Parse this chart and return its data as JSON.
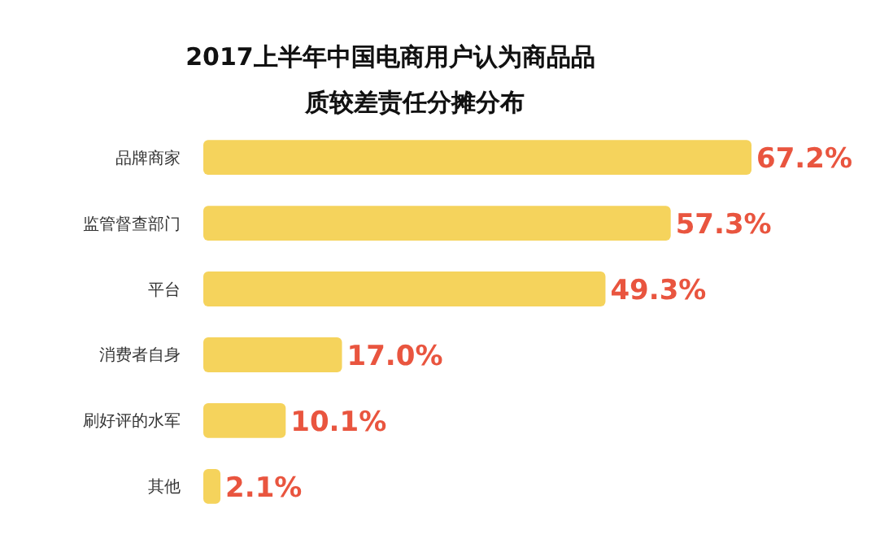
{
  "chart_data": {
    "type": "bar",
    "orientation": "horizontal",
    "title": "2017上半年中国电商用户认为商品品质较差责任分摊分布",
    "categories": [
      "品牌商家",
      "监管督查部门",
      "平台",
      "消费者自身",
      "刷好评的水军",
      "其他"
    ],
    "values": [
      67.2,
      57.3,
      49.3,
      17.0,
      10.1,
      2.1
    ],
    "value_labels": [
      "67.2%",
      "57.3%",
      "49.3%",
      "17.0%",
      "10.1%",
      "2.1%"
    ],
    "color": "#f5d35c",
    "grid": false
  }
}
